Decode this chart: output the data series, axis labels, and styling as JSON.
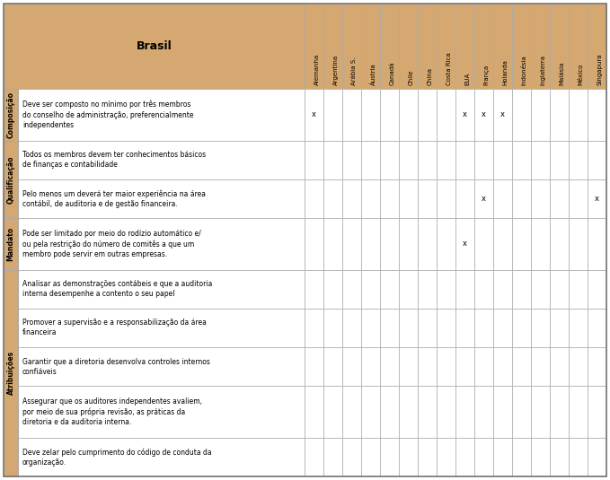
{
  "header_bg": "#D4A870",
  "body_bg": "#FFFFFF",
  "border_color": "#AAAAAA",
  "col_header": "Brasil",
  "countries": [
    "Alemanha",
    "Argentina",
    "Arábia S.",
    "Áustria",
    "Canadá",
    "Chile",
    "China",
    "Costa Rica",
    "EUA",
    "França",
    "Holanda",
    "Indonésia",
    "Inglaterra",
    "Malásia",
    "México",
    "Singapura"
  ],
  "row_groups": [
    {
      "label": "Composição",
      "rows": [
        {
          "text": "Deve ser composto no mínimo por três membros\ndo conselho de administração, preferencialmente\nindependentes",
          "marks": [
            0,
            8,
            9,
            10
          ],
          "nlines": 3
        }
      ]
    },
    {
      "label": "Qualificação",
      "rows": [
        {
          "text": "Todos os membros devem ter conhecimentos básicos\nde finanças e contabilidade",
          "marks": [],
          "nlines": 2
        },
        {
          "text": "Pelo menos um deverá ter maior experiência na área\ncontábil, de auditoria e de gestão financeira.",
          "marks": [
            9,
            15
          ],
          "nlines": 2
        }
      ]
    },
    {
      "label": "Mandato",
      "rows": [
        {
          "text": "Pode ser limitado por meio do rodízio automático e/\nou pela restrição do número de comitês a que um\nmembro pode servir em outras empresas.",
          "marks": [
            8
          ],
          "nlines": 3
        }
      ]
    },
    {
      "label": "Atribuições",
      "rows": [
        {
          "text": "Analisar as demonstrações contábeis e que a auditoria\ninterna desempenhe a contento o seu papel",
          "marks": [],
          "nlines": 2
        },
        {
          "text": "Promover a supervisão e a responsabilização da área\nfinanceira",
          "marks": [],
          "nlines": 2
        },
        {
          "text": "Garantir que a diretoria desenvolva controles internos\nconfiáveis",
          "marks": [],
          "nlines": 2
        },
        {
          "text": "Assegurar que os auditores independentes avaliem,\npor meio de sua própria revisão, as práticas da\ndiretoria e da auditoria interna.",
          "marks": [],
          "nlines": 3
        },
        {
          "text": "Deve zelar pelo cumprimento do código de conduta da\norganização.",
          "marks": [],
          "nlines": 2
        }
      ]
    }
  ],
  "figsize": [
    6.79,
    5.35
  ],
  "dpi": 100
}
